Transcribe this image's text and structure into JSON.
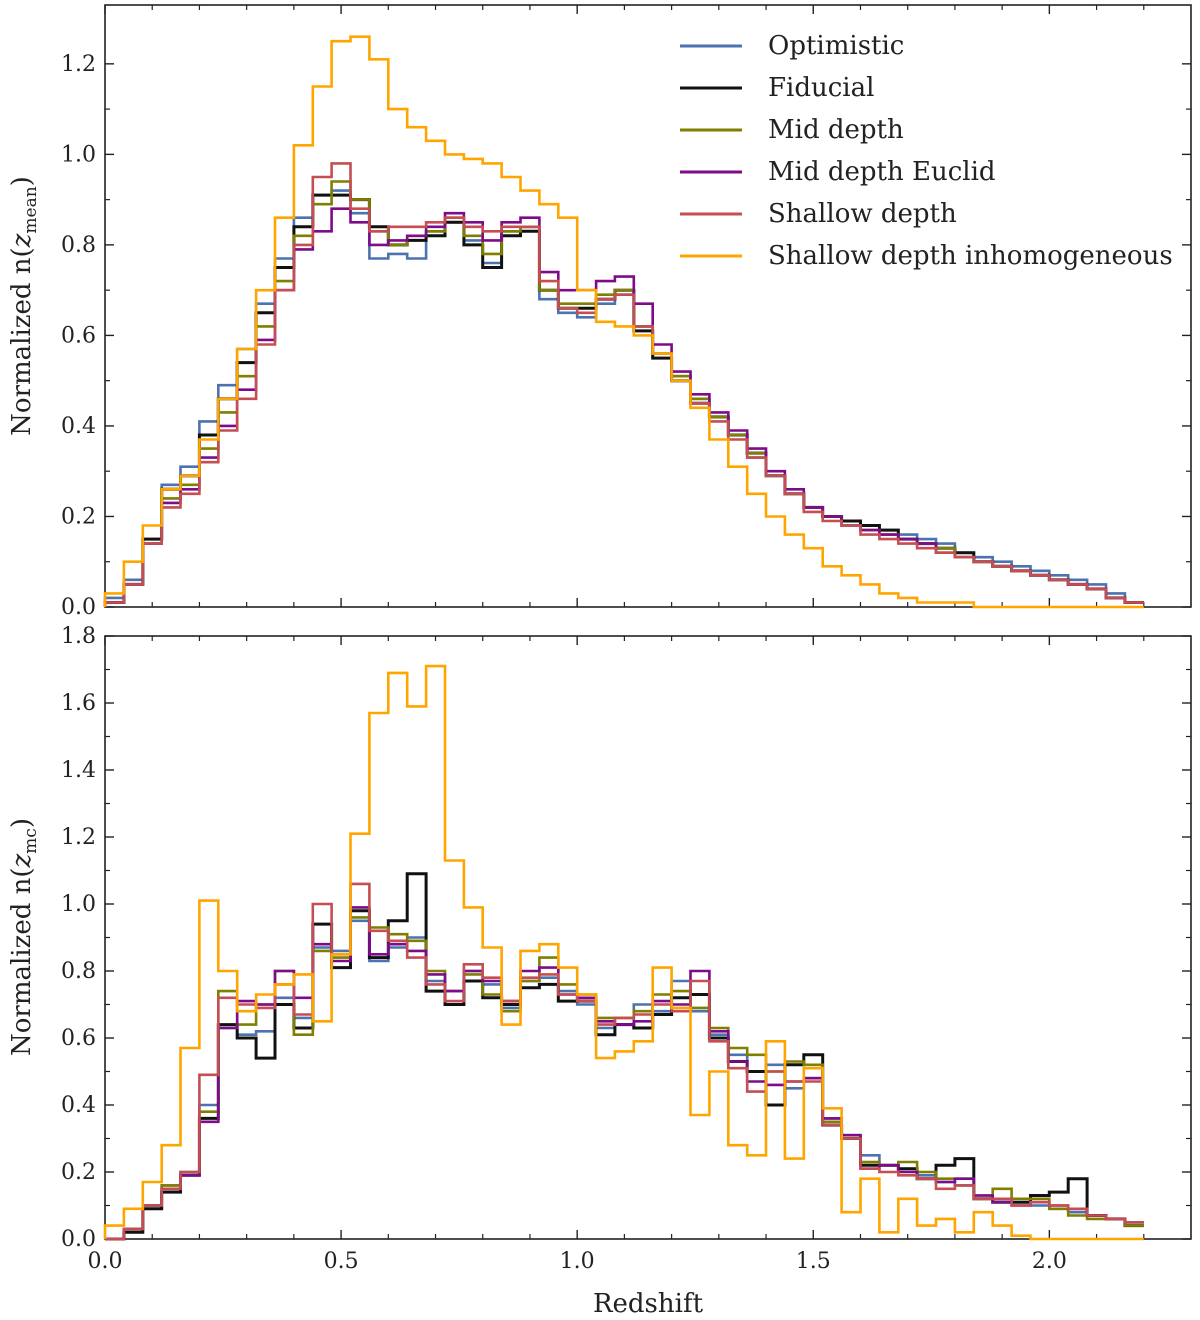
{
  "chart_data": {
    "type": "step",
    "bin_width": 0.04,
    "xlabel": "Redshift",
    "xlim": [
      0.0,
      2.3
    ],
    "xticks": [
      "0.0",
      "0.5",
      "1.0",
      "1.5",
      "2.0"
    ],
    "legend": {
      "placement": "top-right",
      "entries": [
        {
          "name": "Optimistic",
          "color": "#4c72b0"
        },
        {
          "name": "Fiducial",
          "color": "#111111"
        },
        {
          "name": "Mid depth",
          "color": "#7f7f00"
        },
        {
          "name": "Mid depth Euclid",
          "color": "#7d0b8a"
        },
        {
          "name": "Shallow depth",
          "color": "#c44e52"
        },
        {
          "name": "Shallow depth inhomogeneous",
          "color": "#ffa500"
        }
      ]
    },
    "panels": [
      {
        "id": "top",
        "ylabel_prefix": "Normalized n(",
        "ylabel_var": "z",
        "ylabel_sub": "mean",
        "ylabel_suffix": ")",
        "ylim": [
          0,
          1.33
        ],
        "yticks": [
          "0.0",
          "0.2",
          "0.4",
          "0.6",
          "0.8",
          "1.0",
          "1.2"
        ],
        "series": [
          {
            "name": "Optimistic",
            "values": [
              0.02,
              0.06,
              0.15,
              0.27,
              0.31,
              0.41,
              0.49,
              0.57,
              0.67,
              0.77,
              0.86,
              0.91,
              0.92,
              0.87,
              0.77,
              0.78,
              0.77,
              0.83,
              0.85,
              0.81,
              0.76,
              0.83,
              0.84,
              0.68,
              0.65,
              0.64,
              0.67,
              0.69,
              0.62,
              0.55,
              0.51,
              0.46,
              0.42,
              0.38,
              0.33,
              0.29,
              0.25,
              0.22,
              0.2,
              0.19,
              0.18,
              0.17,
              0.16,
              0.15,
              0.14,
              0.12,
              0.11,
              0.1,
              0.09,
              0.08,
              0.07,
              0.06,
              0.05,
              0.03,
              0.01
            ]
          },
          {
            "name": "Fiducial",
            "values": [
              0.01,
              0.05,
              0.15,
              0.26,
              0.29,
              0.38,
              0.46,
              0.54,
              0.65,
              0.75,
              0.84,
              0.91,
              0.91,
              0.9,
              0.84,
              0.8,
              0.81,
              0.82,
              0.85,
              0.8,
              0.75,
              0.82,
              0.83,
              0.7,
              0.66,
              0.66,
              0.68,
              0.7,
              0.61,
              0.55,
              0.5,
              0.45,
              0.42,
              0.38,
              0.34,
              0.29,
              0.25,
              0.22,
              0.2,
              0.19,
              0.18,
              0.17,
              0.15,
              0.14,
              0.13,
              0.12,
              0.1,
              0.09,
              0.08,
              0.07,
              0.06,
              0.05,
              0.04,
              0.02,
              0.01
            ]
          },
          {
            "name": "Mid depth",
            "values": [
              0.01,
              0.05,
              0.14,
              0.24,
              0.27,
              0.35,
              0.43,
              0.51,
              0.62,
              0.72,
              0.82,
              0.89,
              0.94,
              0.9,
              0.83,
              0.8,
              0.82,
              0.83,
              0.86,
              0.82,
              0.78,
              0.83,
              0.84,
              0.7,
              0.67,
              0.67,
              0.69,
              0.7,
              0.62,
              0.56,
              0.51,
              0.46,
              0.42,
              0.38,
              0.34,
              0.29,
              0.25,
              0.22,
              0.2,
              0.18,
              0.17,
              0.16,
              0.15,
              0.14,
              0.13,
              0.11,
              0.1,
              0.09,
              0.08,
              0.07,
              0.06,
              0.05,
              0.04,
              0.02,
              0.01
            ]
          },
          {
            "name": "Mid depth Euclid",
            "values": [
              0.01,
              0.05,
              0.14,
              0.23,
              0.26,
              0.33,
              0.4,
              0.48,
              0.59,
              0.7,
              0.79,
              0.83,
              0.88,
              0.85,
              0.8,
              0.81,
              0.82,
              0.84,
              0.87,
              0.85,
              0.81,
              0.85,
              0.86,
              0.74,
              0.7,
              0.7,
              0.72,
              0.73,
              0.67,
              0.58,
              0.52,
              0.47,
              0.43,
              0.39,
              0.35,
              0.3,
              0.26,
              0.22,
              0.2,
              0.18,
              0.17,
              0.16,
              0.15,
              0.14,
              0.12,
              0.11,
              0.1,
              0.09,
              0.08,
              0.07,
              0.06,
              0.05,
              0.04,
              0.02,
              0.01
            ]
          },
          {
            "name": "Shallow depth",
            "values": [
              0.01,
              0.05,
              0.14,
              0.22,
              0.25,
              0.32,
              0.39,
              0.46,
              0.58,
              0.7,
              0.8,
              0.95,
              0.98,
              0.88,
              0.83,
              0.84,
              0.84,
              0.85,
              0.86,
              0.84,
              0.83,
              0.84,
              0.84,
              0.72,
              0.66,
              0.65,
              0.68,
              0.69,
              0.62,
              0.56,
              0.5,
              0.45,
              0.41,
              0.37,
              0.33,
              0.29,
              0.25,
              0.21,
              0.19,
              0.18,
              0.16,
              0.15,
              0.14,
              0.13,
              0.12,
              0.11,
              0.1,
              0.09,
              0.08,
              0.07,
              0.06,
              0.05,
              0.04,
              0.02,
              0.01
            ]
          },
          {
            "name": "Shallow depth inhomogeneous",
            "values": [
              0.03,
              0.1,
              0.18,
              0.26,
              0.29,
              0.37,
              0.46,
              0.57,
              0.7,
              0.86,
              1.02,
              1.15,
              1.25,
              1.26,
              1.21,
              1.1,
              1.06,
              1.03,
              1.0,
              0.99,
              0.98,
              0.95,
              0.92,
              0.89,
              0.86,
              0.7,
              0.63,
              0.62,
              0.6,
              0.56,
              0.5,
              0.44,
              0.37,
              0.31,
              0.25,
              0.2,
              0.16,
              0.13,
              0.09,
              0.07,
              0.05,
              0.03,
              0.02,
              0.01,
              0.01,
              0.01,
              0.0,
              0.0,
              0.0,
              0.0,
              0.0,
              0.0,
              0.0,
              0.0,
              0.0
            ]
          }
        ]
      },
      {
        "id": "bottom",
        "ylabel_prefix": "Normalized n(",
        "ylabel_var": "z",
        "ylabel_sub": "mc",
        "ylabel_suffix": ")",
        "ylim": [
          0,
          1.8
        ],
        "yticks": [
          "0.0",
          "0.2",
          "0.4",
          "0.6",
          "0.8",
          "1.0",
          "1.2",
          "1.4",
          "1.6",
          "1.8"
        ],
        "series": [
          {
            "name": "Optimistic",
            "values": [
              0.0,
              0.03,
              0.1,
              0.16,
              0.2,
              0.4,
              0.63,
              0.61,
              0.62,
              0.72,
              0.66,
              0.87,
              0.86,
              0.95,
              0.83,
              0.87,
              0.9,
              0.77,
              0.7,
              0.8,
              0.76,
              0.69,
              0.77,
              0.78,
              0.74,
              0.7,
              0.63,
              0.64,
              0.7,
              0.68,
              0.77,
              0.68,
              0.61,
              0.55,
              0.5,
              0.52,
              0.45,
              0.48,
              0.36,
              0.31,
              0.25,
              0.22,
              0.21,
              0.19,
              0.17,
              0.16,
              0.13,
              0.12,
              0.11,
              0.1,
              0.09,
              0.08,
              0.07,
              0.06,
              0.05
            ]
          },
          {
            "name": "Fiducial",
            "values": [
              0.0,
              0.02,
              0.09,
              0.14,
              0.19,
              0.36,
              0.64,
              0.6,
              0.54,
              0.7,
              0.63,
              0.94,
              0.81,
              0.98,
              0.84,
              0.95,
              1.09,
              0.74,
              0.7,
              0.77,
              0.72,
              0.7,
              0.75,
              0.76,
              0.71,
              0.71,
              0.61,
              0.64,
              0.63,
              0.67,
              0.72,
              0.73,
              0.6,
              0.53,
              0.5,
              0.4,
              0.52,
              0.55,
              0.34,
              0.3,
              0.22,
              0.22,
              0.21,
              0.18,
              0.22,
              0.24,
              0.12,
              0.11,
              0.11,
              0.13,
              0.14,
              0.18,
              0.07,
              0.06,
              0.04
            ]
          },
          {
            "name": "Mid depth",
            "values": [
              0.0,
              0.03,
              0.1,
              0.16,
              0.19,
              0.38,
              0.74,
              0.64,
              0.7,
              0.8,
              0.61,
              0.86,
              0.84,
              0.96,
              0.93,
              0.91,
              0.89,
              0.8,
              0.74,
              0.79,
              0.73,
              0.68,
              0.77,
              0.84,
              0.76,
              0.73,
              0.66,
              0.66,
              0.68,
              0.73,
              0.74,
              0.69,
              0.63,
              0.57,
              0.55,
              0.5,
              0.53,
              0.52,
              0.35,
              0.3,
              0.23,
              0.22,
              0.23,
              0.2,
              0.18,
              0.18,
              0.12,
              0.15,
              0.12,
              0.12,
              0.09,
              0.07,
              0.06,
              0.06,
              0.04
            ]
          },
          {
            "name": "Mid depth Euclid",
            "values": [
              0.0,
              0.03,
              0.1,
              0.15,
              0.19,
              0.35,
              0.63,
              0.71,
              0.7,
              0.8,
              0.72,
              0.88,
              0.83,
              0.99,
              0.85,
              0.88,
              0.86,
              0.79,
              0.74,
              0.8,
              0.77,
              0.71,
              0.8,
              0.81,
              0.73,
              0.72,
              0.65,
              0.64,
              0.65,
              0.71,
              0.7,
              0.8,
              0.62,
              0.53,
              0.47,
              0.46,
              0.47,
              0.48,
              0.36,
              0.31,
              0.21,
              0.22,
              0.2,
              0.18,
              0.17,
              0.18,
              0.13,
              0.11,
              0.1,
              0.11,
              0.1,
              0.09,
              0.07,
              0.06,
              0.05
            ]
          },
          {
            "name": "Shallow depth",
            "values": [
              0.0,
              0.03,
              0.1,
              0.15,
              0.2,
              0.49,
              0.72,
              0.7,
              0.69,
              0.76,
              0.67,
              1.0,
              0.85,
              1.06,
              0.92,
              0.89,
              0.84,
              0.76,
              0.71,
              0.82,
              0.78,
              0.71,
              0.78,
              0.79,
              0.73,
              0.71,
              0.64,
              0.66,
              0.67,
              0.7,
              0.68,
              0.77,
              0.59,
              0.51,
              0.44,
              0.5,
              0.47,
              0.47,
              0.34,
              0.3,
              0.21,
              0.2,
              0.19,
              0.18,
              0.15,
              0.16,
              0.12,
              0.12,
              0.1,
              0.11,
              0.1,
              0.09,
              0.07,
              0.06,
              0.05
            ]
          },
          {
            "name": "Shallow depth inhomogeneous",
            "values": [
              0.04,
              0.09,
              0.17,
              0.28,
              0.57,
              1.01,
              0.8,
              0.68,
              0.73,
              0.76,
              0.79,
              0.65,
              0.85,
              1.21,
              1.57,
              1.69,
              1.59,
              1.71,
              1.13,
              0.99,
              0.87,
              0.64,
              0.86,
              0.88,
              0.81,
              0.73,
              0.54,
              0.56,
              0.59,
              0.81,
              0.69,
              0.37,
              0.5,
              0.28,
              0.25,
              0.59,
              0.24,
              0.51,
              0.39,
              0.08,
              0.18,
              0.02,
              0.12,
              0.04,
              0.06,
              0.02,
              0.08,
              0.04,
              0.01,
              0.0,
              0.0,
              0.0,
              0.0,
              0.0,
              0.0
            ]
          }
        ]
      }
    ]
  }
}
